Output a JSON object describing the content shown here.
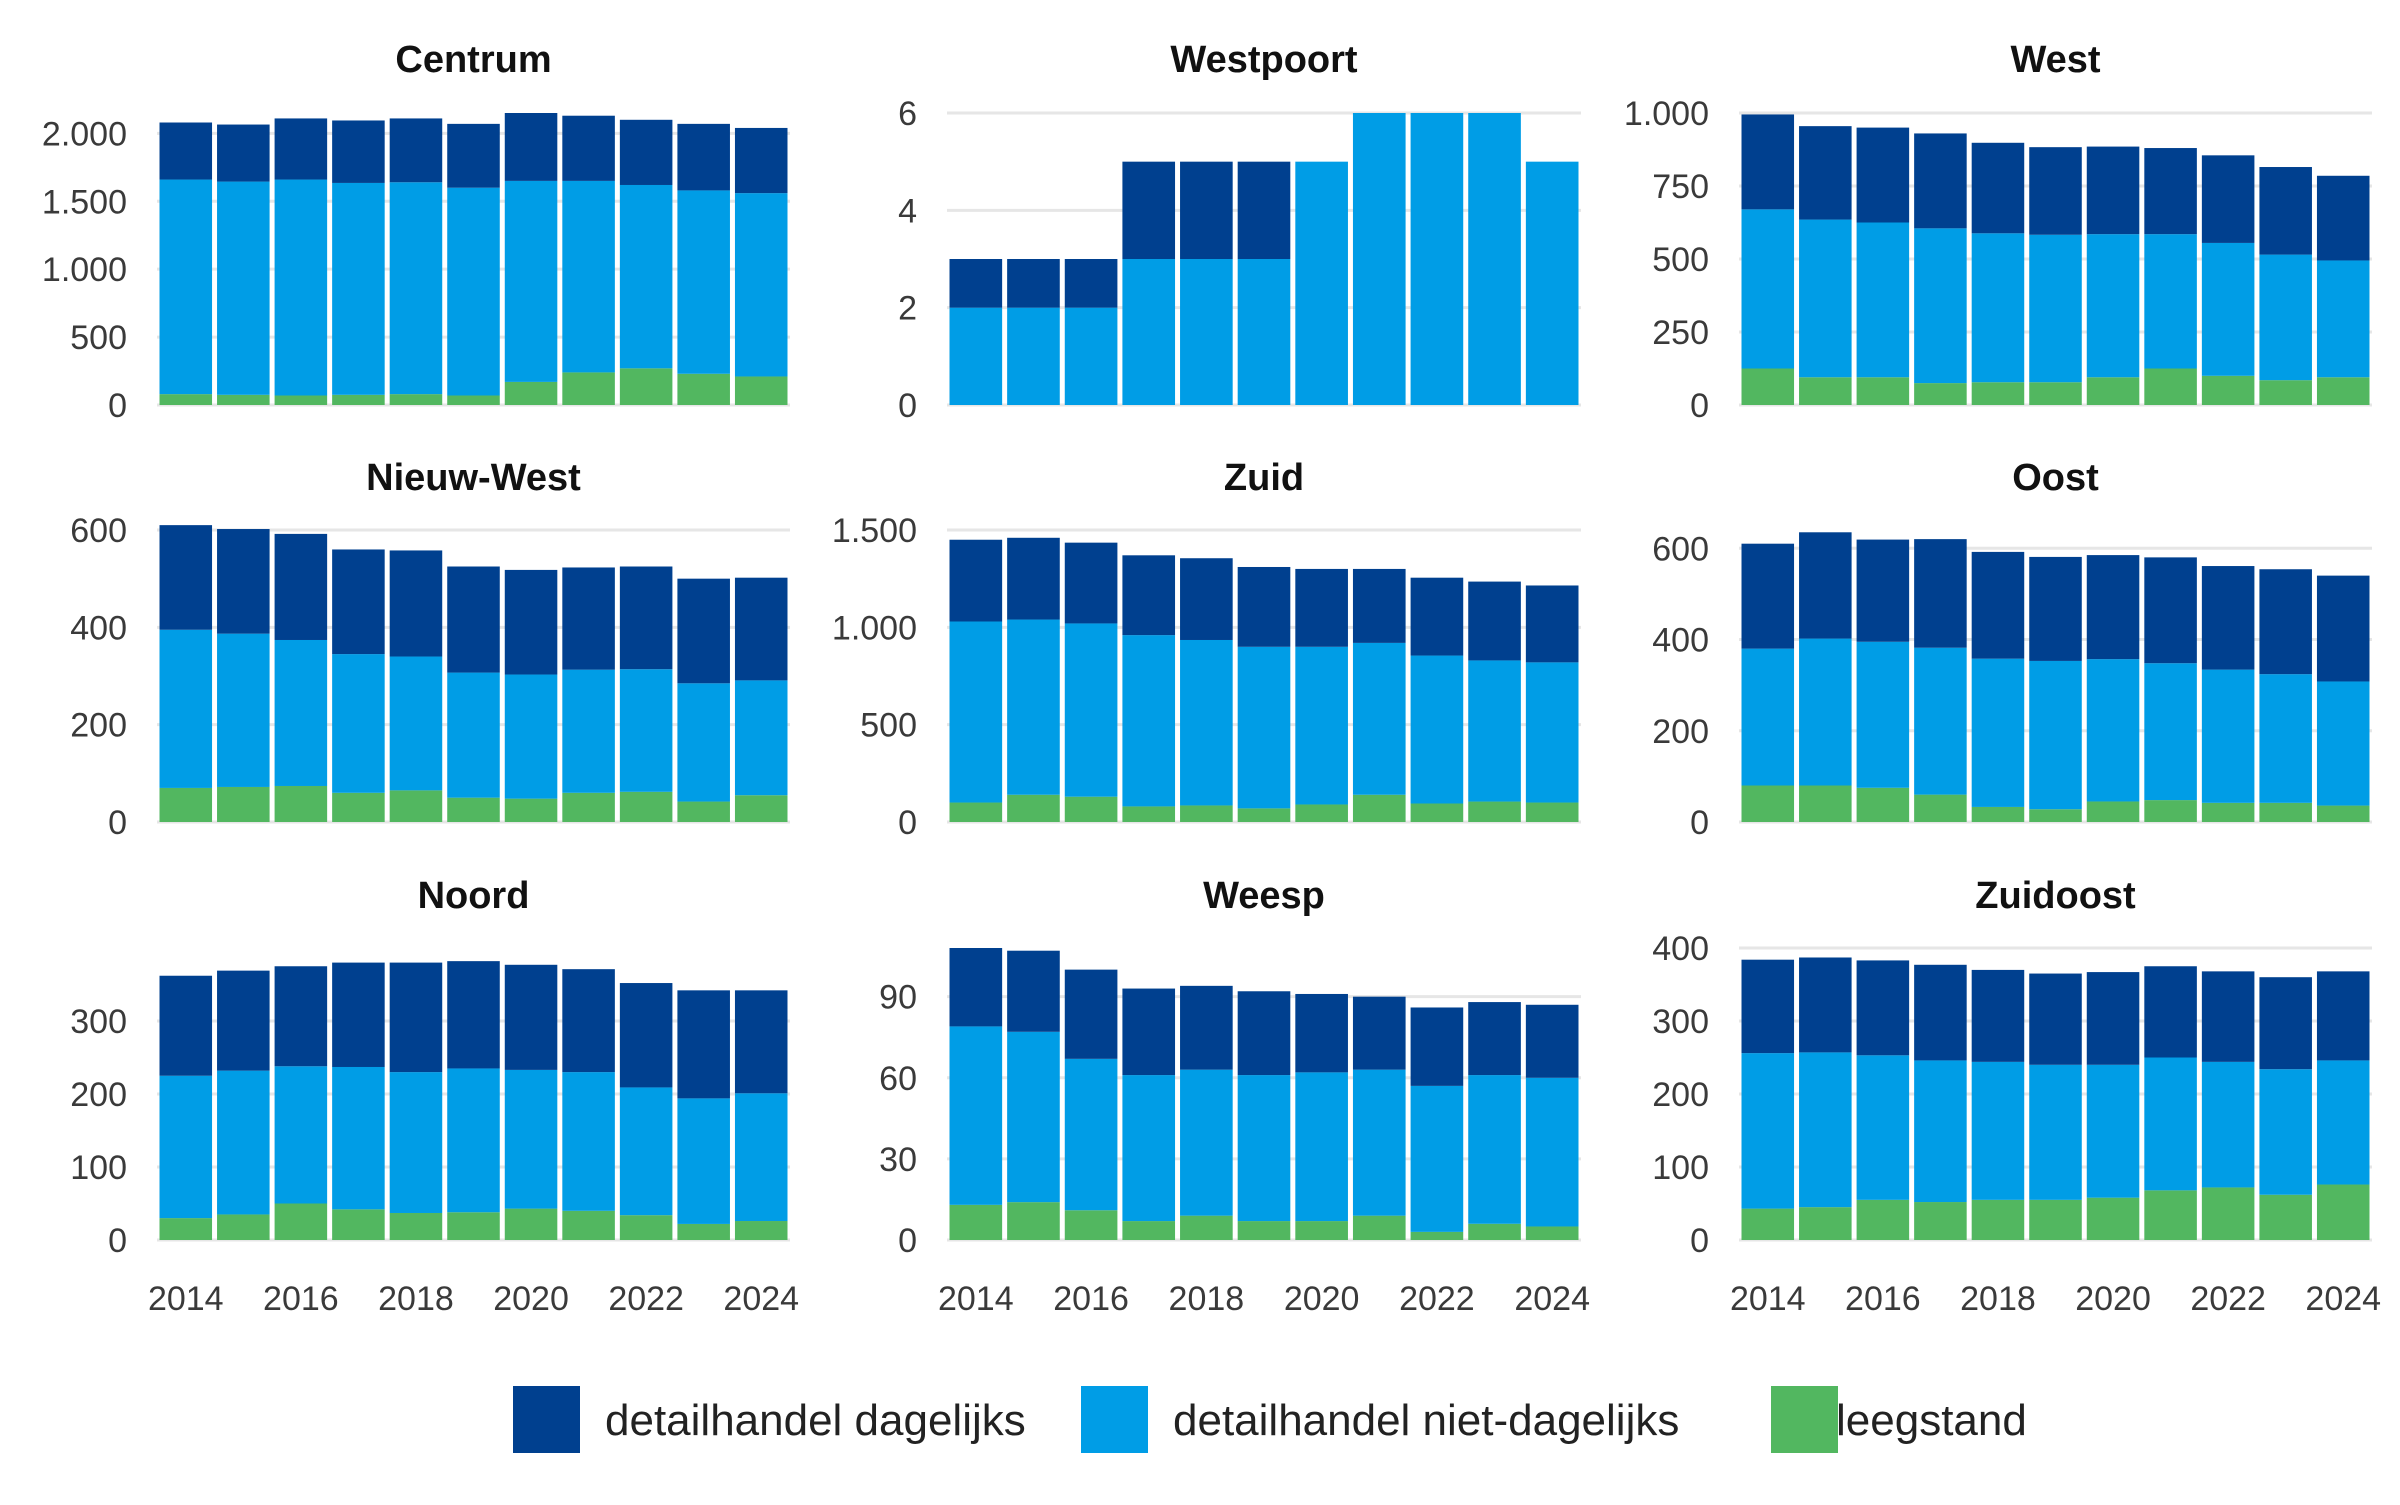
{
  "legend": [
    {
      "key": "dagelijks",
      "label": "detailhandel dagelijks",
      "color": "#00408f"
    },
    {
      "key": "niet_dagelijks",
      "label": "detailhandel niet-dagelijks",
      "color": "#009de6"
    },
    {
      "key": "leegstand",
      "label": "leegstand",
      "color": "#52b760"
    }
  ],
  "chart_data": [
    {
      "type": "bar",
      "stacked": true,
      "title": "Centrum",
      "x": [
        2014,
        2015,
        2016,
        2017,
        2018,
        2019,
        2020,
        2021,
        2022,
        2023,
        2024
      ],
      "ylim": [
        0,
        2150
      ],
      "yticks": [
        0,
        500,
        1000,
        1500,
        2000
      ],
      "ytick_labels": [
        "0",
        "500",
        "1.000",
        "1.500",
        "2.000"
      ],
      "series": [
        {
          "name": "leegstand",
          "values": [
            80,
            75,
            70,
            75,
            80,
            70,
            170,
            240,
            270,
            230,
            210
          ]
        },
        {
          "name": "detailhandel niet-dagelijks",
          "values": [
            1580,
            1570,
            1590,
            1560,
            1560,
            1530,
            1480,
            1410,
            1350,
            1350,
            1350
          ]
        },
        {
          "name": "detailhandel dagelijks",
          "values": [
            420,
            420,
            450,
            460,
            470,
            470,
            500,
            480,
            480,
            490,
            480
          ]
        }
      ]
    },
    {
      "type": "bar",
      "stacked": true,
      "title": "Westpoort",
      "x": [
        2014,
        2015,
        2016,
        2017,
        2018,
        2019,
        2020,
        2021,
        2022,
        2023,
        2024
      ],
      "ylim": [
        0,
        6
      ],
      "yticks": [
        0,
        2,
        4,
        6
      ],
      "ytick_labels": [
        "0",
        "2",
        "4",
        "6"
      ],
      "series": [
        {
          "name": "leegstand",
          "values": [
            0,
            0,
            0,
            0,
            0,
            0,
            0,
            0,
            0,
            0,
            0
          ]
        },
        {
          "name": "detailhandel niet-dagelijks",
          "values": [
            2,
            2,
            2,
            3,
            3,
            3,
            5,
            6,
            6,
            6,
            5
          ]
        },
        {
          "name": "detailhandel dagelijks",
          "values": [
            1,
            1,
            1,
            2,
            2,
            2,
            0,
            0,
            0,
            0,
            0
          ]
        }
      ]
    },
    {
      "type": "bar",
      "stacked": true,
      "title": "West",
      "x": [
        2014,
        2015,
        2016,
        2017,
        2018,
        2019,
        2020,
        2021,
        2022,
        2023,
        2024
      ],
      "ylim": [
        0,
        1000
      ],
      "yticks": [
        0,
        250,
        500,
        750,
        1000
      ],
      "ytick_labels": [
        "0",
        "250",
        "500",
        "750",
        "1.000"
      ],
      "series": [
        {
          "name": "leegstand",
          "values": [
            125,
            95,
            95,
            75,
            78,
            78,
            95,
            125,
            100,
            85,
            95
          ]
        },
        {
          "name": "detailhandel niet-dagelijks",
          "values": [
            545,
            540,
            530,
            530,
            510,
            505,
            490,
            460,
            455,
            430,
            400
          ]
        },
        {
          "name": "detailhandel dagelijks",
          "values": [
            325,
            320,
            325,
            325,
            310,
            300,
            300,
            295,
            300,
            300,
            290
          ]
        }
      ]
    },
    {
      "type": "bar",
      "stacked": true,
      "title": "Nieuw-West",
      "x": [
        2014,
        2015,
        2016,
        2017,
        2018,
        2019,
        2020,
        2021,
        2022,
        2023,
        2024
      ],
      "ylim": [
        0,
        600
      ],
      "yticks": [
        0,
        200,
        400,
        600
      ],
      "ytick_labels": [
        "0",
        "200",
        "400",
        "600"
      ],
      "series": [
        {
          "name": "leegstand",
          "values": [
            70,
            72,
            74,
            60,
            65,
            50,
            48,
            60,
            62,
            42,
            55
          ]
        },
        {
          "name": "detailhandel niet-dagelijks",
          "values": [
            325,
            315,
            300,
            285,
            275,
            257,
            255,
            253,
            252,
            243,
            236
          ]
        },
        {
          "name": "detailhandel dagelijks",
          "values": [
            215,
            215,
            218,
            215,
            218,
            218,
            215,
            210,
            211,
            215,
            211
          ]
        }
      ]
    },
    {
      "type": "bar",
      "stacked": true,
      "title": "Zuid",
      "x": [
        2014,
        2015,
        2016,
        2017,
        2018,
        2019,
        2020,
        2021,
        2022,
        2023,
        2024
      ],
      "ylim": [
        0,
        1500
      ],
      "yticks": [
        0,
        500,
        1000,
        1500
      ],
      "ytick_labels": [
        "0",
        "500",
        "1.000",
        "1.500"
      ],
      "series": [
        {
          "name": "leegstand",
          "values": [
            100,
            140,
            130,
            80,
            85,
            70,
            90,
            140,
            95,
            105,
            100
          ]
        },
        {
          "name": "detailhandel niet-dagelijks",
          "values": [
            930,
            900,
            890,
            880,
            850,
            830,
            810,
            780,
            760,
            725,
            720
          ]
        },
        {
          "name": "detailhandel dagelijks",
          "values": [
            420,
            420,
            415,
            410,
            420,
            410,
            400,
            380,
            400,
            405,
            395
          ]
        }
      ]
    },
    {
      "type": "bar",
      "stacked": true,
      "title": "Oost",
      "x": [
        2014,
        2015,
        2016,
        2017,
        2018,
        2019,
        2020,
        2021,
        2022,
        2023,
        2024
      ],
      "ylim": [
        0,
        640
      ],
      "yticks": [
        0,
        200,
        400,
        600
      ],
      "ytick_labels": [
        "0",
        "200",
        "400",
        "600"
      ],
      "series": [
        {
          "name": "leegstand",
          "values": [
            80,
            80,
            75,
            60,
            33,
            28,
            45,
            48,
            42,
            42,
            36
          ]
        },
        {
          "name": "detailhandel niet-dagelijks",
          "values": [
            300,
            322,
            320,
            322,
            325,
            325,
            312,
            300,
            292,
            282,
            272
          ]
        },
        {
          "name": "detailhandel dagelijks",
          "values": [
            230,
            233,
            224,
            238,
            234,
            228,
            228,
            232,
            227,
            230,
            232
          ]
        }
      ]
    },
    {
      "type": "bar",
      "stacked": true,
      "title": "Noord",
      "x": [
        2014,
        2015,
        2016,
        2017,
        2018,
        2019,
        2020,
        2021,
        2022,
        2023,
        2024
      ],
      "ylim": [
        0,
        400
      ],
      "yticks": [
        0,
        100,
        200,
        300
      ],
      "ytick_labels": [
        "0",
        "100",
        "200",
        "300"
      ],
      "series": [
        {
          "name": "leegstand",
          "values": [
            30,
            35,
            50,
            42,
            37,
            38,
            43,
            40,
            34,
            22,
            26
          ]
        },
        {
          "name": "detailhandel niet-dagelijks",
          "values": [
            195,
            197,
            188,
            195,
            193,
            197,
            190,
            190,
            175,
            172,
            175
          ]
        },
        {
          "name": "detailhandel dagelijks",
          "values": [
            137,
            137,
            137,
            143,
            150,
            147,
            144,
            141,
            143,
            148,
            141
          ]
        }
      ]
    },
    {
      "type": "bar",
      "stacked": true,
      "title": "Weesp",
      "x": [
        2014,
        2015,
        2016,
        2017,
        2018,
        2019,
        2020,
        2021,
        2022,
        2023,
        2024
      ],
      "ylim": [
        0,
        108
      ],
      "yticks": [
        0,
        30,
        60,
        90
      ],
      "ytick_labels": [
        "0",
        "30",
        "60",
        "90"
      ],
      "series": [
        {
          "name": "leegstand",
          "values": [
            13,
            14,
            11,
            7,
            9,
            7,
            7,
            9,
            3,
            6,
            5
          ]
        },
        {
          "name": "detailhandel niet-dagelijks",
          "values": [
            66,
            63,
            56,
            54,
            54,
            54,
            55,
            54,
            54,
            55,
            55
          ]
        },
        {
          "name": "detailhandel dagelijks",
          "values": [
            29,
            30,
            33,
            32,
            31,
            31,
            29,
            27,
            29,
            27,
            27
          ]
        }
      ]
    },
    {
      "type": "bar",
      "stacked": true,
      "title": "Zuidoost",
      "x": [
        2014,
        2015,
        2016,
        2017,
        2018,
        2019,
        2020,
        2021,
        2022,
        2023,
        2024
      ],
      "ylim": [
        0,
        400
      ],
      "yticks": [
        0,
        100,
        200,
        300,
        400
      ],
      "ytick_labels": [
        "0",
        "100",
        "200",
        "300",
        "400"
      ],
      "series": [
        {
          "name": "leegstand",
          "values": [
            43,
            45,
            55,
            52,
            55,
            55,
            58,
            68,
            72,
            62,
            76
          ]
        },
        {
          "name": "detailhandel niet-dagelijks",
          "values": [
            213,
            212,
            198,
            194,
            189,
            185,
            182,
            182,
            172,
            172,
            170
          ]
        },
        {
          "name": "detailhandel dagelijks",
          "values": [
            128,
            130,
            130,
            131,
            126,
            125,
            127,
            125,
            124,
            126,
            122
          ]
        }
      ]
    }
  ],
  "x_tick_labels": [
    "2014",
    "2016",
    "2018",
    "2020",
    "2022",
    "2024"
  ]
}
